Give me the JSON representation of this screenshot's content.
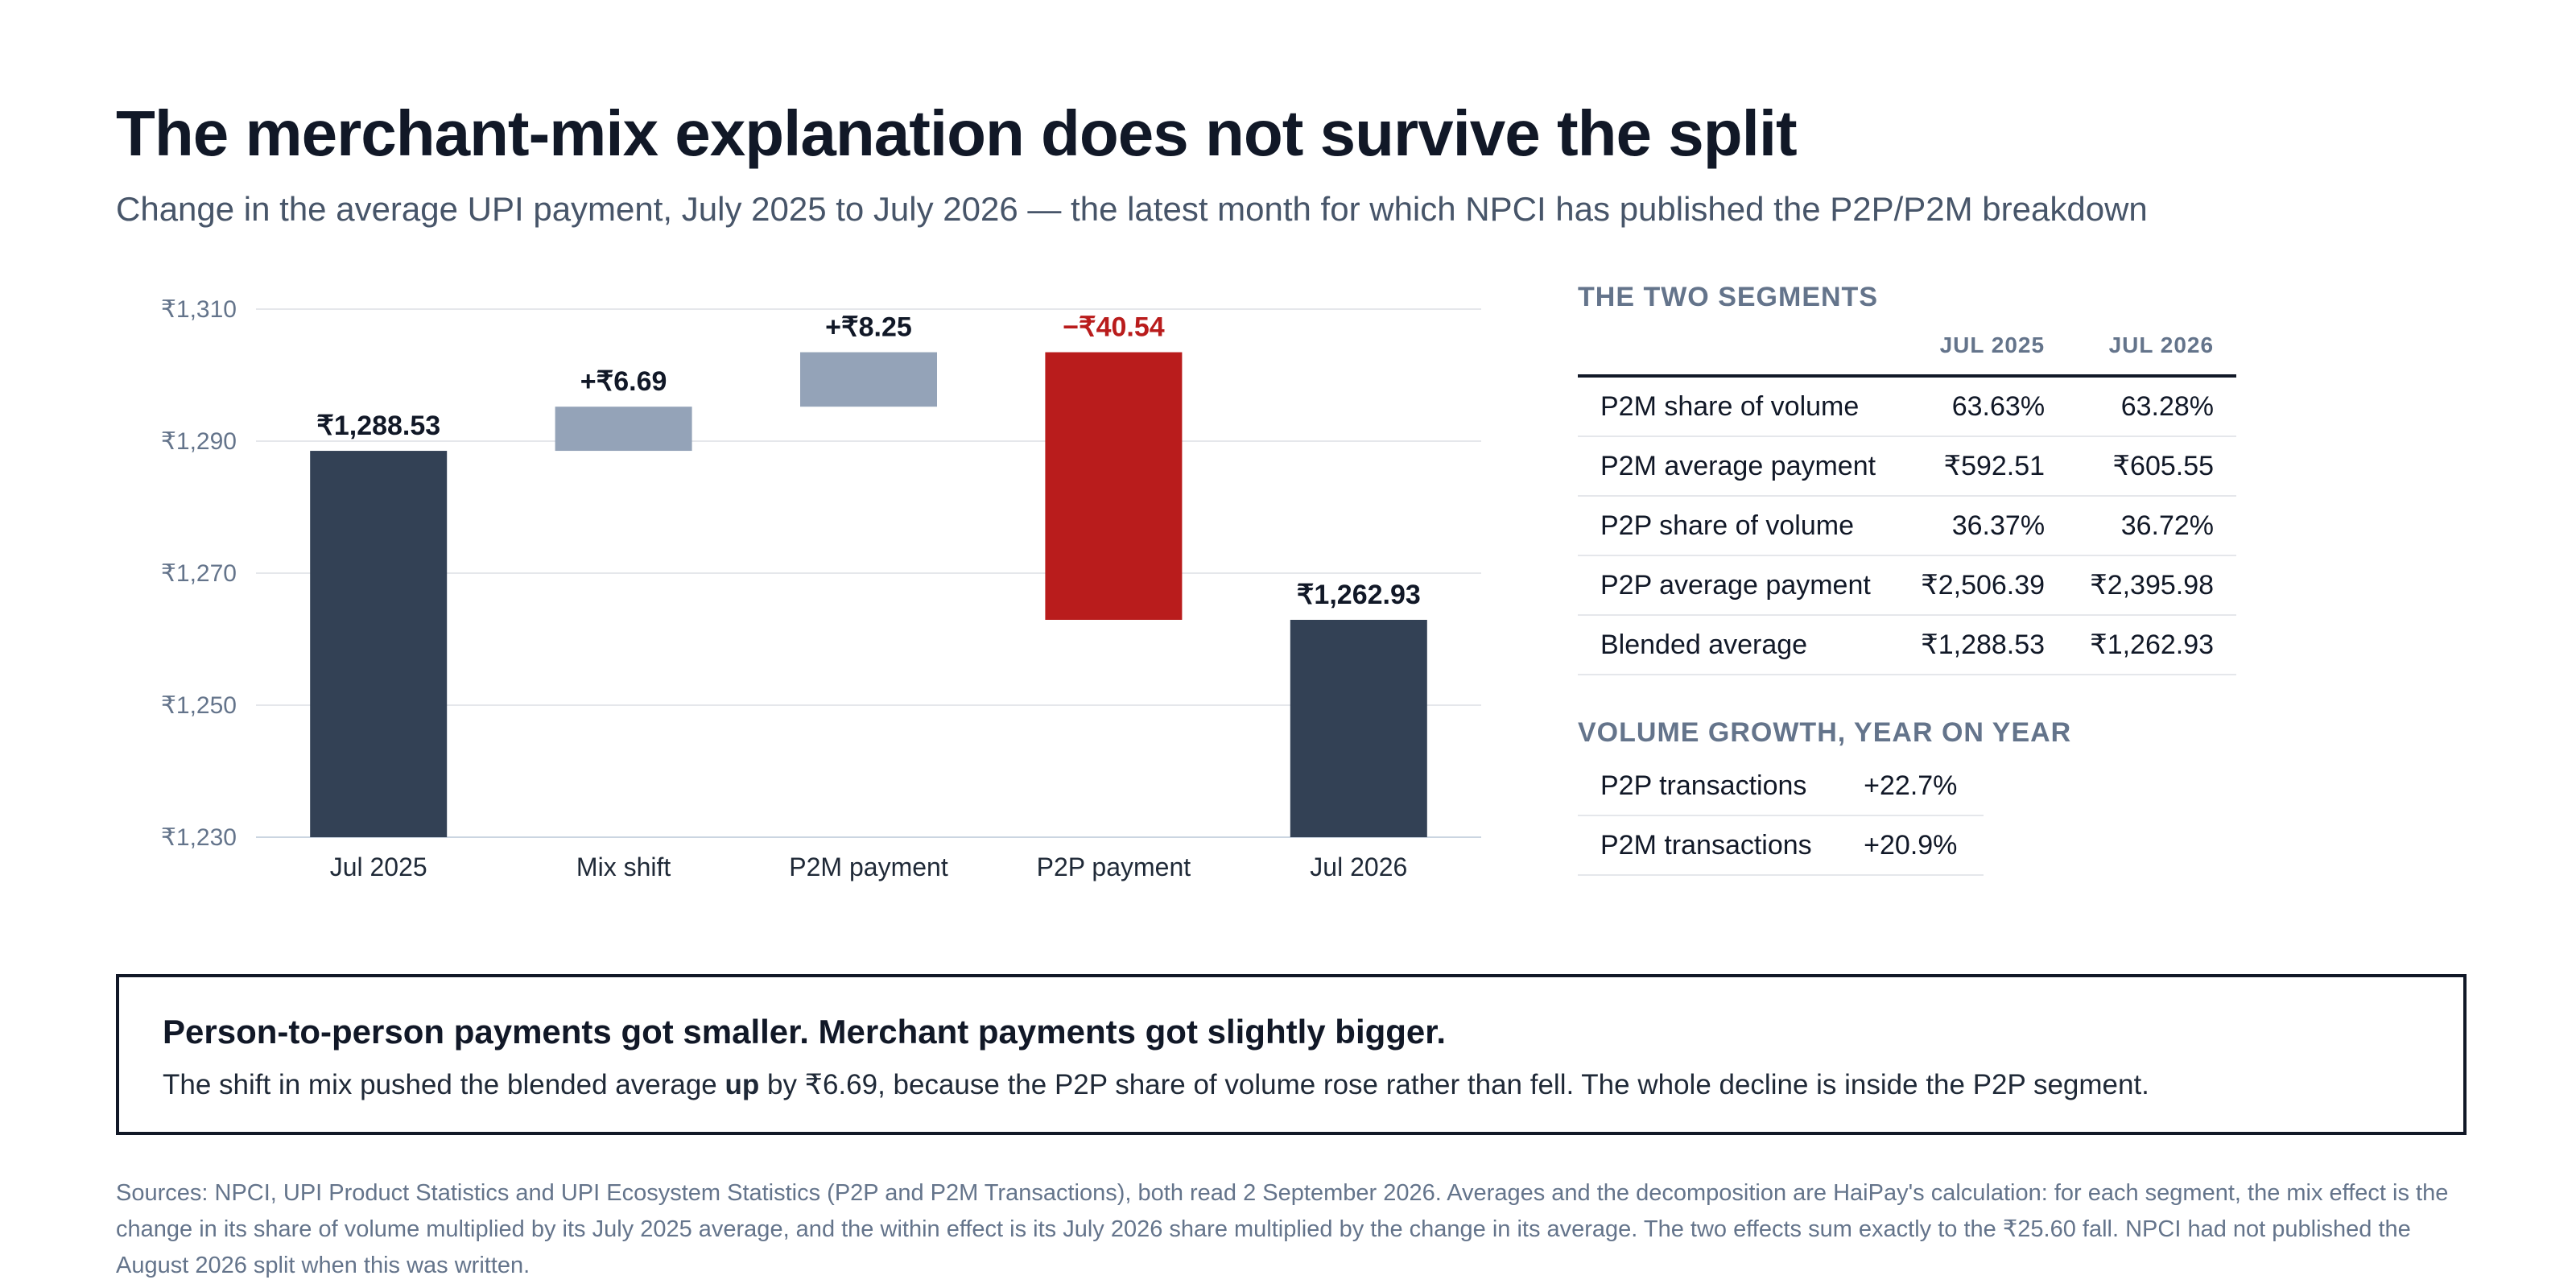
{
  "header": {
    "title": "The merchant-mix explanation does not survive the split",
    "subtitle": "Change in the average UPI payment, July 2025 to July 2026 — the latest month for which NPCI has published the P2P/P2M breakdown"
  },
  "chart_data": {
    "type": "waterfall",
    "ylim": [
      1230,
      1310
    ],
    "yticks": [
      1230,
      1250,
      1270,
      1290,
      1310
    ],
    "ytick_labels": [
      "₹1,230",
      "₹1,250",
      "₹1,270",
      "₹1,290",
      "₹1,310"
    ],
    "grid": true,
    "categories": [
      "Jul 2025",
      "Mix shift",
      "P2M payment",
      "P2P payment",
      "Jul 2026"
    ],
    "steps": [
      {
        "kind": "total",
        "value": 1288.53,
        "label": "₹1,288.53"
      },
      {
        "kind": "delta",
        "value": 6.69,
        "label": "+₹6.69"
      },
      {
        "kind": "delta",
        "value": 8.25,
        "label": "+₹8.25"
      },
      {
        "kind": "delta",
        "value": -40.54,
        "label": "−₹40.54"
      },
      {
        "kind": "total",
        "value": 1262.93,
        "label": "₹1,262.93"
      }
    ],
    "colors": {
      "total": "#334155",
      "increase": "#94a3b8",
      "decrease": "#b91c1c",
      "grid": "#e5e7eb",
      "axis": "#cbd5e1"
    }
  },
  "segments": {
    "heading": "THE TWO SEGMENTS",
    "columns": [
      "JUL 2025",
      "JUL 2026"
    ],
    "rows": [
      {
        "label": "P2M share of volume",
        "jul2025": "63.63%",
        "jul2026": "63.28%"
      },
      {
        "label": "P2M average payment",
        "jul2025": "₹592.51",
        "jul2026": "₹605.55"
      },
      {
        "label": "P2P share of volume",
        "jul2025": "36.37%",
        "jul2026": "36.72%"
      },
      {
        "label": "P2P average payment",
        "jul2025": "₹2,506.39",
        "jul2026": "₹2,395.98"
      },
      {
        "label": "Blended average",
        "jul2025": "₹1,288.53",
        "jul2026": "₹1,262.93"
      }
    ]
  },
  "growth": {
    "heading": "VOLUME GROWTH, YEAR ON YEAR",
    "rows": [
      {
        "label": "P2P transactions",
        "value": "+22.7%"
      },
      {
        "label": "P2M transactions",
        "value": "+20.9%"
      }
    ]
  },
  "callout": {
    "title": "Person-to-person payments got smaller. Merchant payments got slightly bigger.",
    "text_before": "The shift in mix pushed the blended average ",
    "text_bold": "up",
    "text_after": " by ₹6.69, because the P2P share of volume rose rather than fell. The whole decline is inside the P2P segment."
  },
  "sources": "Sources: NPCI, UPI Product Statistics and UPI Ecosystem Statistics (P2P and P2M Transactions), both read 2 September 2026. Averages and the decomposition are HaiPay's calculation: for each segment, the mix effect is the change in its share of volume multiplied by its July 2025 average, and the within effect is its July 2026 share multiplied by the change in its average. The two effects sum exactly to the ₹25.60 fall. NPCI had not published the August 2026 split when this was written."
}
